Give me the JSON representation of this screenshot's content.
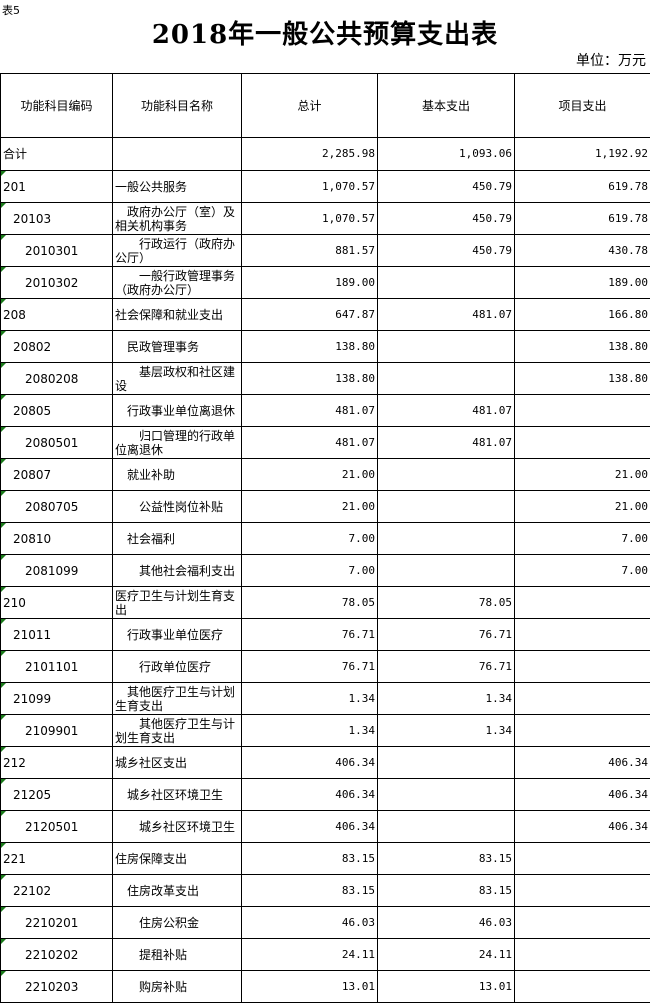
{
  "tag": "表5",
  "title": "2018年一般公共预算支出表",
  "unit": "单位：万元",
  "headers": [
    "功能科目编码",
    "功能科目名称",
    "总计",
    "基本支出",
    "项目支出"
  ],
  "total": {
    "label": "合计",
    "total": "2,285.98",
    "basic": "1,093.06",
    "project": "1,192.92"
  },
  "rows": [
    {
      "level": 1,
      "code": "201",
      "name": "一般公共服务",
      "total": "1,070.57",
      "basic": "450.79",
      "project": "619.78"
    },
    {
      "level": 2,
      "code": "20103",
      "name": "政府办公厅（室）及相关机构事务",
      "total": "1,070.57",
      "basic": "450.79",
      "project": "619.78"
    },
    {
      "level": 3,
      "code": "2010301",
      "name": "行政运行（政府办公厅）",
      "total": "881.57",
      "basic": "450.79",
      "project": "430.78"
    },
    {
      "level": 3,
      "code": "2010302",
      "name": "一般行政管理事务（政府办公厅）",
      "total": "189.00",
      "basic": "",
      "project": "189.00"
    },
    {
      "level": 1,
      "code": "208",
      "name": "社会保障和就业支出",
      "total": "647.87",
      "basic": "481.07",
      "project": "166.80"
    },
    {
      "level": 2,
      "code": "20802",
      "name": "民政管理事务",
      "total": "138.80",
      "basic": "",
      "project": "138.80"
    },
    {
      "level": 3,
      "code": "2080208",
      "name": "基层政权和社区建设",
      "total": "138.80",
      "basic": "",
      "project": "138.80"
    },
    {
      "level": 2,
      "code": "20805",
      "name": "行政事业单位离退休",
      "total": "481.07",
      "basic": "481.07",
      "project": ""
    },
    {
      "level": 3,
      "code": "2080501",
      "name": "归口管理的行政单位离退休",
      "total": "481.07",
      "basic": "481.07",
      "project": ""
    },
    {
      "level": 2,
      "code": "20807",
      "name": "就业补助",
      "total": "21.00",
      "basic": "",
      "project": "21.00"
    },
    {
      "level": 3,
      "code": "2080705",
      "name": "公益性岗位补贴",
      "total": "21.00",
      "basic": "",
      "project": "21.00"
    },
    {
      "level": 2,
      "code": "20810",
      "name": "社会福利",
      "total": "7.00",
      "basic": "",
      "project": "7.00"
    },
    {
      "level": 3,
      "code": "2081099",
      "name": "其他社会福利支出",
      "total": "7.00",
      "basic": "",
      "project": "7.00"
    },
    {
      "level": 1,
      "code": "210",
      "name": "医疗卫生与计划生育支出",
      "total": "78.05",
      "basic": "78.05",
      "project": ""
    },
    {
      "level": 2,
      "code": "21011",
      "name": "行政事业单位医疗",
      "total": "76.71",
      "basic": "76.71",
      "project": ""
    },
    {
      "level": 3,
      "code": "2101101",
      "name": "行政单位医疗",
      "total": "76.71",
      "basic": "76.71",
      "project": ""
    },
    {
      "level": 2,
      "code": "21099",
      "name": "其他医疗卫生与计划生育支出",
      "total": "1.34",
      "basic": "1.34",
      "project": ""
    },
    {
      "level": 3,
      "code": "2109901",
      "name": "其他医疗卫生与计划生育支出",
      "total": "1.34",
      "basic": "1.34",
      "project": ""
    },
    {
      "level": 1,
      "code": "212",
      "name": "城乡社区支出",
      "total": "406.34",
      "basic": "",
      "project": "406.34"
    },
    {
      "level": 2,
      "code": "21205",
      "name": "城乡社区环境卫生",
      "total": "406.34",
      "basic": "",
      "project": "406.34"
    },
    {
      "level": 3,
      "code": "2120501",
      "name": "城乡社区环境卫生",
      "total": "406.34",
      "basic": "",
      "project": "406.34"
    },
    {
      "level": 1,
      "code": "221",
      "name": "住房保障支出",
      "total": "83.15",
      "basic": "83.15",
      "project": ""
    },
    {
      "level": 2,
      "code": "22102",
      "name": "住房改革支出",
      "total": "83.15",
      "basic": "83.15",
      "project": ""
    },
    {
      "level": 3,
      "code": "2210201",
      "name": "住房公积金",
      "total": "46.03",
      "basic": "46.03",
      "project": ""
    },
    {
      "level": 3,
      "code": "2210202",
      "name": "提租补贴",
      "total": "24.11",
      "basic": "24.11",
      "project": ""
    },
    {
      "level": 3,
      "code": "2210203",
      "name": "购房补贴",
      "total": "13.01",
      "basic": "13.01",
      "project": ""
    }
  ]
}
